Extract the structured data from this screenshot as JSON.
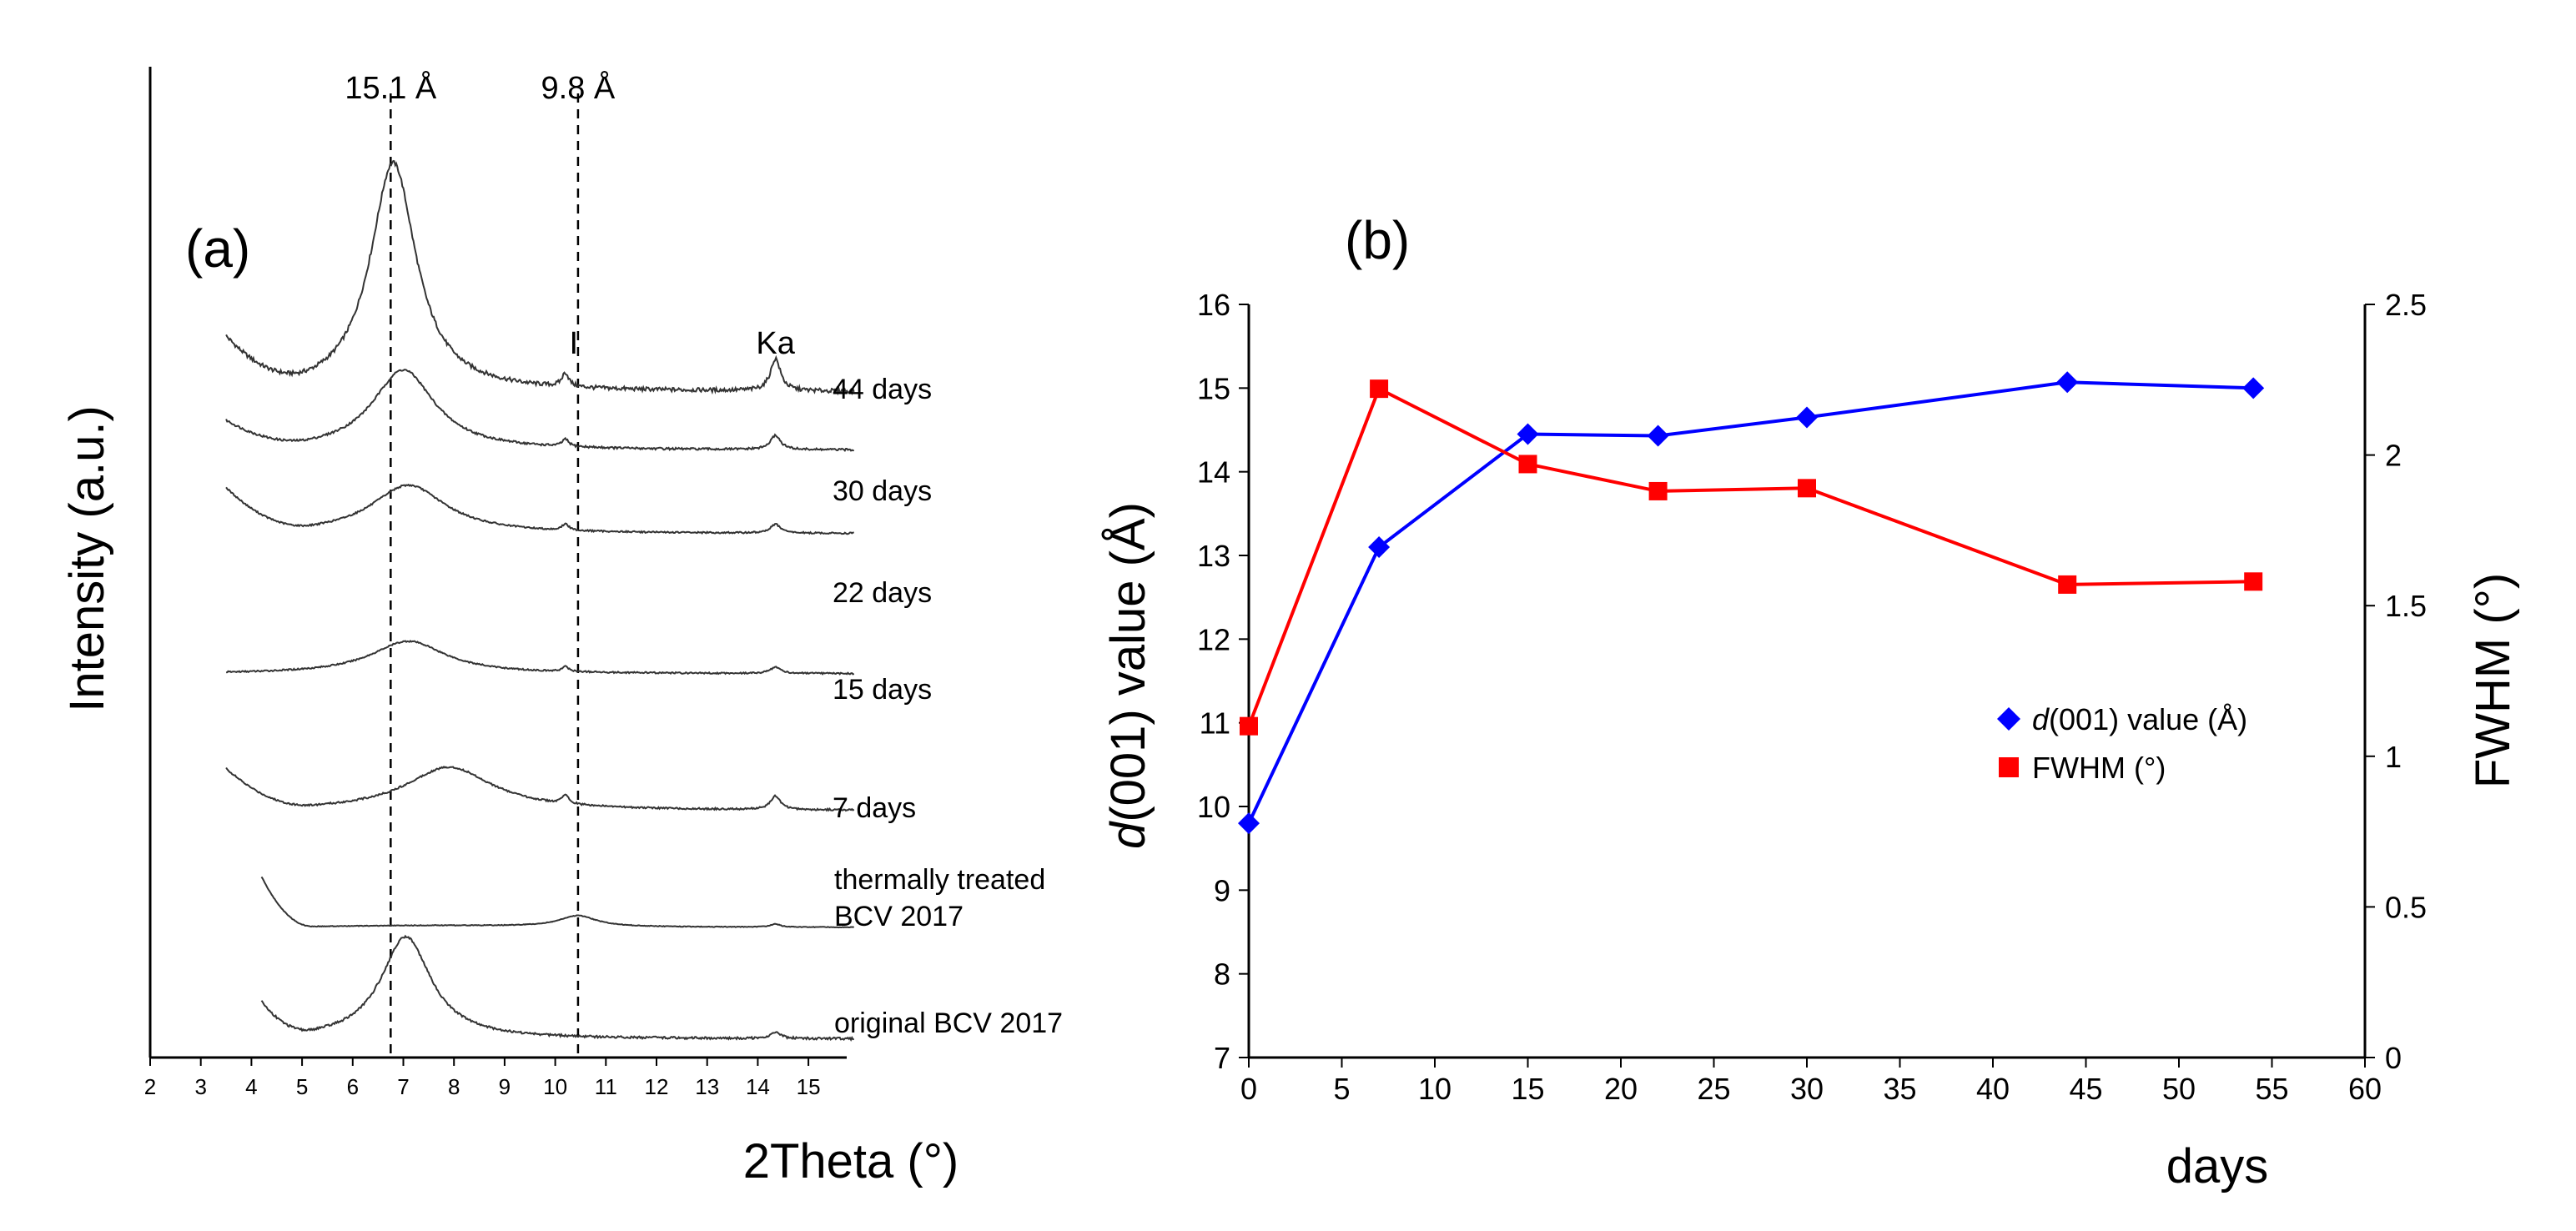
{
  "chart_data": [
    {
      "panel": "(a)",
      "type": "line",
      "title": "",
      "xlabel": "2Theta (°)",
      "ylabel": "Intensity (a.u.)",
      "xlim": [
        2,
        16
      ],
      "xticks": [
        "2",
        "3",
        "4",
        "5",
        "6",
        "7",
        "8",
        "9",
        "10",
        "11",
        "12",
        "13",
        "14",
        "15"
      ],
      "grid": false,
      "reference_lines": [
        {
          "x": 6.75,
          "label": "15.1 Å"
        },
        {
          "x": 10.45,
          "label": "9.8 Å"
        }
      ],
      "annotations": [
        {
          "text": "I",
          "x": 10.2
        },
        {
          "text": "Ka",
          "x": 14.35
        }
      ],
      "series": [
        {
          "name": "44 days",
          "x_start": 3.5,
          "x_end": 15.9,
          "peak_x": 6.8,
          "peak_height": 1.0,
          "peak_width": 0.55,
          "baseline": 0.0
        },
        {
          "name": "30 days",
          "x_start": 3.5,
          "x_end": 15.9,
          "peak_x": 7.0,
          "peak_height": 0.68,
          "peak_width": 0.75,
          "baseline": 0.0
        },
        {
          "name": "22 days",
          "x_start": 3.5,
          "x_end": 15.9,
          "peak_x": 7.1,
          "peak_height": 0.55,
          "peak_width": 0.9,
          "baseline": 0.0
        },
        {
          "name": "15 days",
          "x_start": 3.5,
          "x_end": 15.9,
          "peak_x": 7.1,
          "peak_height": 0.4,
          "peak_width": 0.9,
          "baseline": 0.0
        },
        {
          "name": "7 days",
          "x_start": 3.5,
          "x_end": 15.9,
          "peak_x": 7.9,
          "peak_height": 0.45,
          "peak_width": 1.05,
          "baseline": 0.0
        },
        {
          "name": "thermally treated BCV 2017",
          "x_start": 4.2,
          "x_end": 15.9,
          "peak_x": 10.45,
          "peak_height": 0.3,
          "peak_width": 0.45,
          "baseline": 0.0
        },
        {
          "name": "original BCV 2017",
          "x_start": 4.2,
          "x_end": 15.9,
          "peak_x": 7.05,
          "peak_height": 0.82,
          "peak_width": 0.6,
          "baseline": 0.0
        }
      ],
      "trace_labels": [
        [
          "44 days"
        ],
        [
          "30 days"
        ],
        [
          "22 days"
        ],
        [
          "15 days"
        ],
        [
          "7 days"
        ],
        [
          "thermally treated",
          "BCV 2017"
        ],
        [
          "original BCV 2017"
        ]
      ]
    },
    {
      "panel": "(b)",
      "type": "line",
      "title": "",
      "xlabel": "days",
      "ylabel_left": "d(001) value (Å)",
      "ylabel_right": "FWHM (°)",
      "xlim": [
        0,
        60
      ],
      "ylim_left": [
        7,
        16
      ],
      "ylim_right": [
        0,
        2.5
      ],
      "xticks": [
        "0",
        "5",
        "10",
        "15",
        "20",
        "25",
        "30",
        "35",
        "40",
        "45",
        "50",
        "55",
        "60"
      ],
      "yticks_left": [
        "7",
        "8",
        "9",
        "10",
        "11",
        "12",
        "13",
        "14",
        "15",
        "16"
      ],
      "yticks_right": [
        "0",
        "0.5",
        "1",
        "1.5",
        "2",
        "2.5"
      ],
      "grid": false,
      "legend_position": "center-right",
      "x": [
        0,
        7,
        15,
        22,
        30,
        44,
        54
      ],
      "series": [
        {
          "name": "d(001) value (Å)",
          "axis": "left",
          "color": "#0000ff",
          "marker": "diamond",
          "values": [
            9.8,
            13.1,
            14.45,
            14.43,
            14.65,
            15.07,
            15.0
          ]
        },
        {
          "name": "FWHM (°)",
          "axis": "right",
          "color": "#ff0000",
          "marker": "square",
          "values": [
            1.1,
            2.22,
            1.97,
            1.88,
            1.89,
            1.57,
            1.58
          ]
        }
      ],
      "legend": [
        {
          "prefix": "d",
          "rest": "(001) value (Å)"
        },
        {
          "prefix": "",
          "rest": "FWHM (°)"
        }
      ]
    }
  ]
}
